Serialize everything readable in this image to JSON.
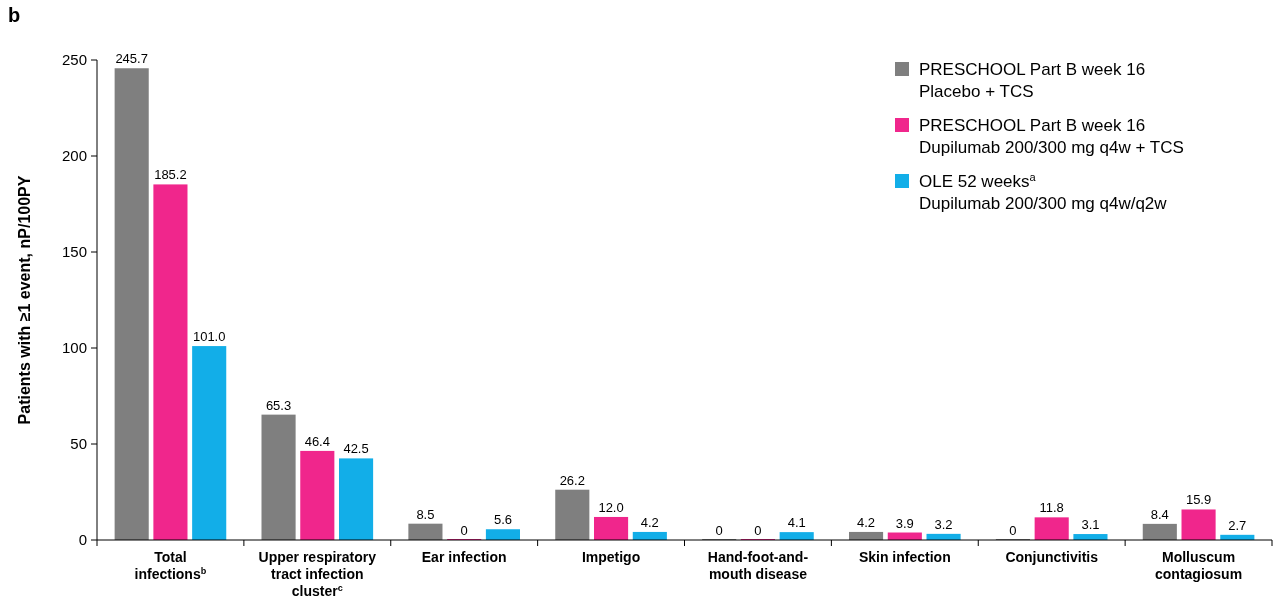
{
  "chart_data": {
    "type": "bar",
    "title": "b",
    "ylabel": "Patients with ≥1 event, nP/100PY",
    "categories": [
      "Total\ninfections$^{b}$",
      "Upper respiratory\ntract infection\ncluster$^{c}$",
      "Ear infection",
      "Impetigo",
      "Hand-foot-and-\nmouth disease",
      "Skin infection",
      "Conjunctivitis",
      "Molluscum\ncontagiosum"
    ],
    "series": [
      {
        "name": "PRESCHOOL Part B week 16\nPlacebo + TCS",
        "color": "#7f7f7f",
        "values": [
          245.7,
          65.3,
          8.5,
          26.2,
          0,
          4.2,
          0,
          8.4
        ],
        "value_labels": [
          "245.7",
          "65.3",
          "8.5",
          "26.2",
          "0",
          "4.2",
          "0",
          "8.4"
        ]
      },
      {
        "name": "PRESCHOOL Part B week 16\nDupilumab 200/300 mg q4w + TCS",
        "color": "#f0268c",
        "values": [
          185.2,
          46.4,
          0,
          12.0,
          0,
          3.9,
          11.8,
          15.9
        ],
        "value_labels": [
          "185.2",
          "46.4",
          "0",
          "12.0",
          "0",
          "3.9",
          "11.8",
          "15.9"
        ]
      },
      {
        "name": "OLE 52 weeks$^{a}$\nDupilumab 200/300 mg q4w/q2w",
        "color": "#12aee8",
        "values": [
          101.0,
          42.5,
          5.6,
          4.2,
          4.1,
          3.2,
          3.1,
          2.7
        ],
        "value_labels": [
          "101.0",
          "42.5",
          "5.6",
          "4.2",
          "4.1",
          "3.2",
          "3.1",
          "2.7"
        ]
      }
    ],
    "ylim": [
      0,
      250
    ],
    "yticks": [
      0,
      50,
      100,
      150,
      200,
      250
    ],
    "grid": false,
    "legend": "top right"
  }
}
